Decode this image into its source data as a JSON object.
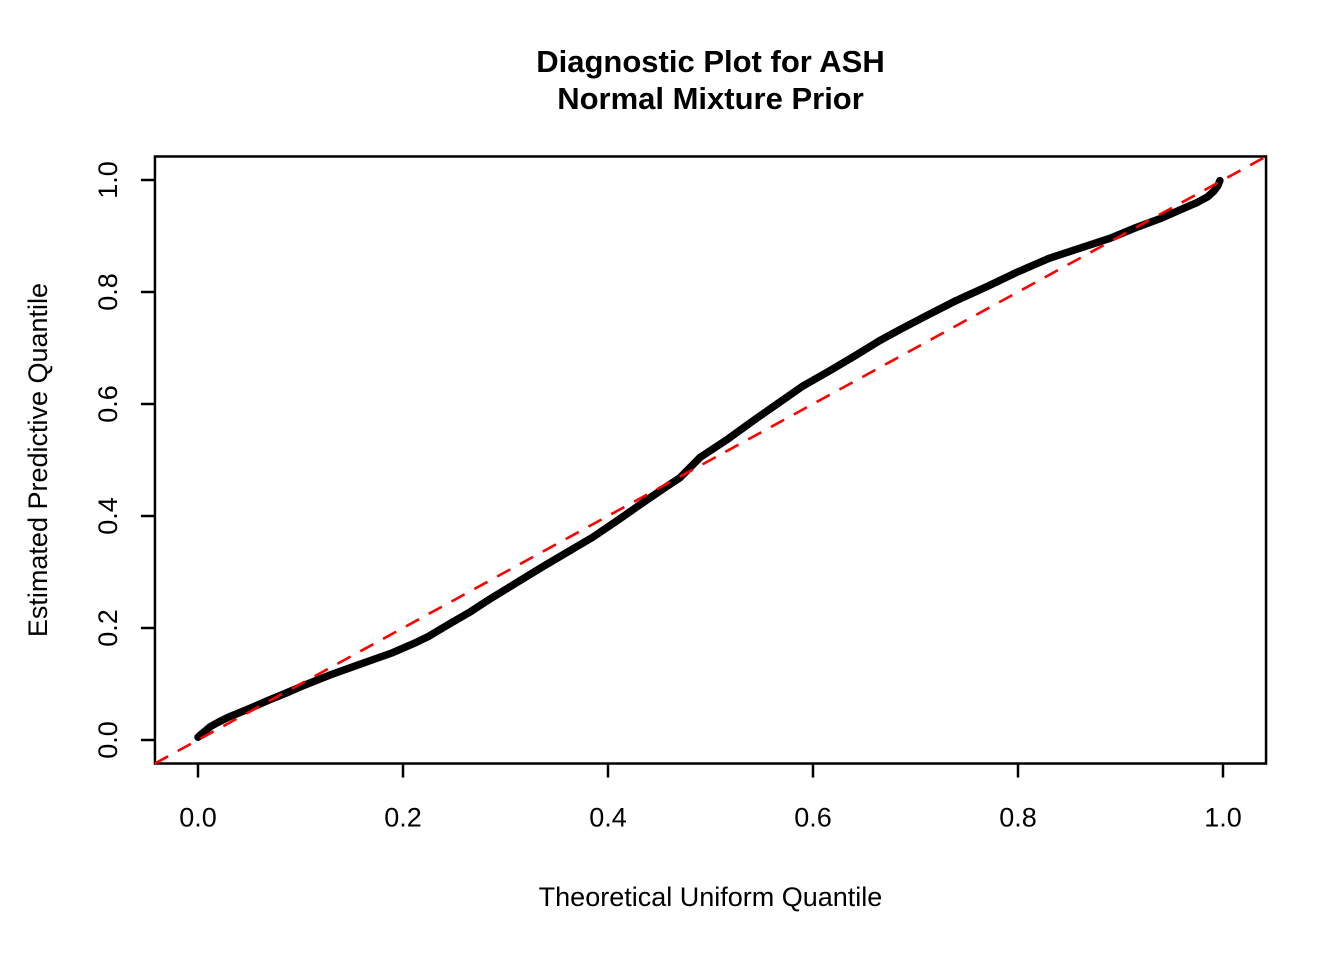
{
  "title": {
    "line1": "Diagnostic Plot for ASH",
    "line2": "Normal Mixture Prior"
  },
  "chart_data": {
    "type": "line",
    "title": "Diagnostic Plot for ASH — Normal Mixture Prior",
    "xlabel": "Theoretical Uniform Quantile",
    "ylabel": "Estimated Predictive Quantile",
    "xlim": [
      -0.042,
      1.042
    ],
    "ylim": [
      -0.042,
      1.042
    ],
    "x_ticks": [
      0.0,
      0.2,
      0.4,
      0.6,
      0.8,
      1.0
    ],
    "y_ticks": [
      0.0,
      0.2,
      0.4,
      0.6,
      0.8,
      1.0
    ],
    "grid": false,
    "legend": "none",
    "frame_color": "#000000",
    "series": [
      {
        "name": "estimated-predictive-quantiles",
        "type": "thick-solid-curve",
        "color": "#000000",
        "points": [
          [
            0.0,
            0.005
          ],
          [
            0.003,
            0.01
          ],
          [
            0.007,
            0.016
          ],
          [
            0.012,
            0.024
          ],
          [
            0.02,
            0.032
          ],
          [
            0.03,
            0.041
          ],
          [
            0.042,
            0.05
          ],
          [
            0.055,
            0.06
          ],
          [
            0.07,
            0.072
          ],
          [
            0.085,
            0.083
          ],
          [
            0.1,
            0.095
          ],
          [
            0.115,
            0.106
          ],
          [
            0.13,
            0.117
          ],
          [
            0.15,
            0.13
          ],
          [
            0.17,
            0.143
          ],
          [
            0.19,
            0.156
          ],
          [
            0.21,
            0.172
          ],
          [
            0.225,
            0.185
          ],
          [
            0.245,
            0.207
          ],
          [
            0.265,
            0.228
          ],
          [
            0.285,
            0.252
          ],
          [
            0.31,
            0.28
          ],
          [
            0.335,
            0.308
          ],
          [
            0.36,
            0.335
          ],
          [
            0.385,
            0.362
          ],
          [
            0.41,
            0.393
          ],
          [
            0.435,
            0.425
          ],
          [
            0.455,
            0.45
          ],
          [
            0.47,
            0.468
          ],
          [
            0.49,
            0.505
          ],
          [
            0.515,
            0.535
          ],
          [
            0.54,
            0.568
          ],
          [
            0.565,
            0.6
          ],
          [
            0.59,
            0.632
          ],
          [
            0.615,
            0.658
          ],
          [
            0.64,
            0.685
          ],
          [
            0.665,
            0.713
          ],
          [
            0.685,
            0.733
          ],
          [
            0.71,
            0.757
          ],
          [
            0.74,
            0.785
          ],
          [
            0.77,
            0.81
          ],
          [
            0.8,
            0.836
          ],
          [
            0.83,
            0.86
          ],
          [
            0.86,
            0.878
          ],
          [
            0.89,
            0.896
          ],
          [
            0.915,
            0.915
          ],
          [
            0.94,
            0.932
          ],
          [
            0.96,
            0.948
          ],
          [
            0.975,
            0.96
          ],
          [
            0.985,
            0.97
          ],
          [
            0.991,
            0.98
          ],
          [
            0.995,
            0.99
          ],
          [
            0.997,
            0.999
          ]
        ]
      },
      {
        "name": "reference-line-y-equals-x",
        "type": "dashed-line",
        "color": "#FF0000",
        "points": [
          [
            -0.042,
            -0.042
          ],
          [
            1.042,
            1.042
          ]
        ]
      }
    ]
  }
}
